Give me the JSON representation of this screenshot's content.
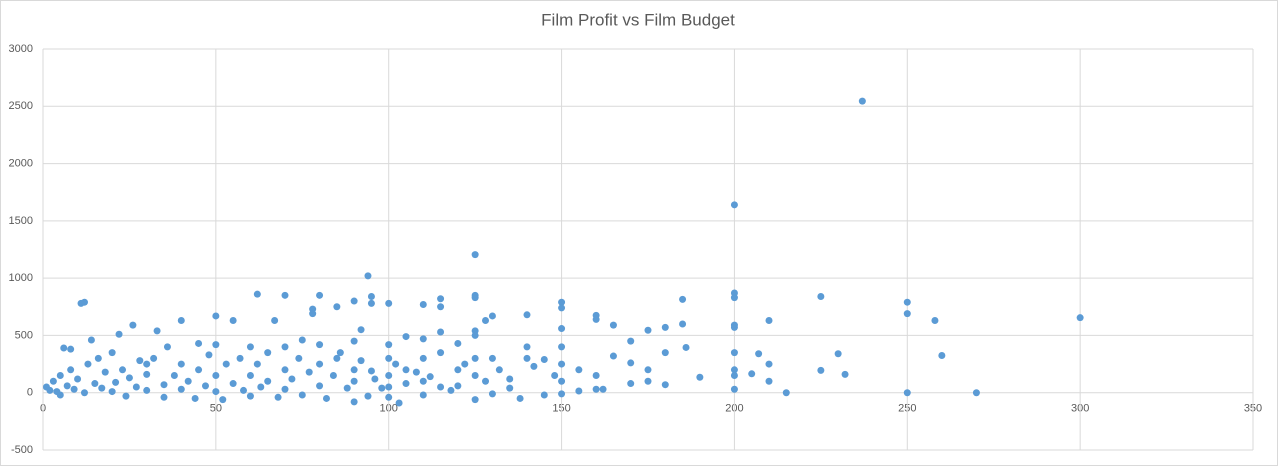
{
  "chart_data": {
    "type": "scatter",
    "title": "Film Profit vs Film Budget",
    "color": "#5b9bd5",
    "grid": true,
    "xlim": [
      0,
      350
    ],
    "xticks": [
      0,
      50,
      100,
      150,
      200,
      250,
      300,
      350
    ],
    "ylim": [
      -500,
      3000
    ],
    "yticks": [
      -500,
      0,
      500,
      1000,
      1500,
      2000,
      2500,
      3000
    ],
    "x": [
      237,
      200,
      125,
      94,
      300,
      270,
      250,
      250,
      250,
      258,
      260,
      225,
      225,
      232,
      230,
      215,
      210,
      210,
      210,
      207,
      205,
      200,
      200,
      200,
      200,
      200,
      200,
      200,
      200,
      190,
      186,
      185,
      185,
      180,
      180,
      180,
      175,
      175,
      175,
      170,
      170,
      165,
      165,
      162,
      160,
      160,
      160,
      155,
      150,
      150,
      150,
      150,
      150,
      150,
      150,
      145,
      140,
      140,
      140,
      138,
      135,
      130,
      130,
      128,
      125,
      125,
      125,
      125,
      125,
      125,
      125,
      120,
      120,
      115,
      115,
      115,
      115,
      115,
      110,
      110,
      110,
      110,
      105,
      105,
      103,
      100,
      100,
      100,
      100,
      100,
      95,
      95,
      95,
      92,
      90,
      90,
      90,
      90,
      85,
      85,
      80,
      80,
      78,
      78,
      75,
      70,
      70,
      67,
      62,
      60,
      55,
      50,
      50,
      45,
      40,
      33,
      26,
      22,
      12,
      11,
      14,
      6,
      8,
      30,
      1,
      2,
      3,
      4,
      5,
      5,
      7,
      8,
      9,
      10,
      12,
      13,
      15,
      16,
      17,
      18,
      20,
      20,
      21,
      23,
      24,
      25,
      27,
      28,
      30,
      30,
      32,
      35,
      35,
      36,
      38,
      40,
      40,
      42,
      44,
      45,
      47,
      48,
      50,
      50,
      52,
      53,
      55,
      57,
      58,
      60,
      60,
      62,
      63,
      65,
      65,
      68,
      70,
      70,
      72,
      74,
      75,
      77,
      80,
      80,
      82,
      84,
      86,
      88,
      90,
      92,
      94,
      96,
      98,
      100,
      102,
      105,
      108,
      110,
      112,
      118,
      120,
      122,
      128,
      130,
      132,
      135,
      142,
      145,
      148,
      155,
      160,
      170
    ],
    "values": [
      2545,
      1640,
      1205,
      1020,
      655,
      0,
      0,
      790,
      690,
      630,
      325,
      840,
      195,
      160,
      340,
      0,
      630,
      250,
      100,
      340,
      165,
      870,
      830,
      590,
      570,
      350,
      200,
      150,
      30,
      135,
      395,
      815,
      600,
      570,
      350,
      70,
      545,
      200,
      100,
      450,
      260,
      590,
      320,
      30,
      675,
      640,
      150,
      15,
      790,
      740,
      560,
      400,
      250,
      100,
      -10,
      290,
      680,
      400,
      300,
      -50,
      120,
      670,
      300,
      630,
      850,
      830,
      540,
      500,
      300,
      150,
      -60,
      430,
      200,
      820,
      750,
      530,
      350,
      50,
      770,
      470,
      300,
      100,
      490,
      200,
      -90,
      780,
      420,
      300,
      150,
      50,
      840,
      780,
      190,
      550,
      800,
      450,
      200,
      -80,
      750,
      300,
      850,
      420,
      730,
      690,
      460,
      850,
      400,
      630,
      860,
      400,
      630,
      670,
      420,
      430,
      630,
      540,
      590,
      510,
      790,
      780,
      460,
      390,
      380,
      250,
      50,
      20,
      100,
      10,
      150,
      -20,
      60,
      200,
      30,
      120,
      0,
      250,
      80,
      300,
      40,
      180,
      10,
      350,
      90,
      200,
      -30,
      130,
      50,
      280,
      20,
      160,
      300,
      70,
      -40,
      400,
      150,
      30,
      250,
      100,
      -50,
      200,
      60,
      330,
      10,
      150,
      -60,
      250,
      80,
      300,
      20,
      150,
      -30,
      250,
      50,
      350,
      100,
      -40,
      200,
      30,
      120,
      300,
      -20,
      180,
      60,
      250,
      -50,
      150,
      350,
      40,
      100,
      280,
      -30,
      120,
      40,
      -40,
      250,
      80,
      180,
      -20,
      140,
      20,
      60,
      250,
      100,
      -10,
      200,
      40,
      230,
      -20,
      150,
      200,
      30,
      80
    ]
  }
}
